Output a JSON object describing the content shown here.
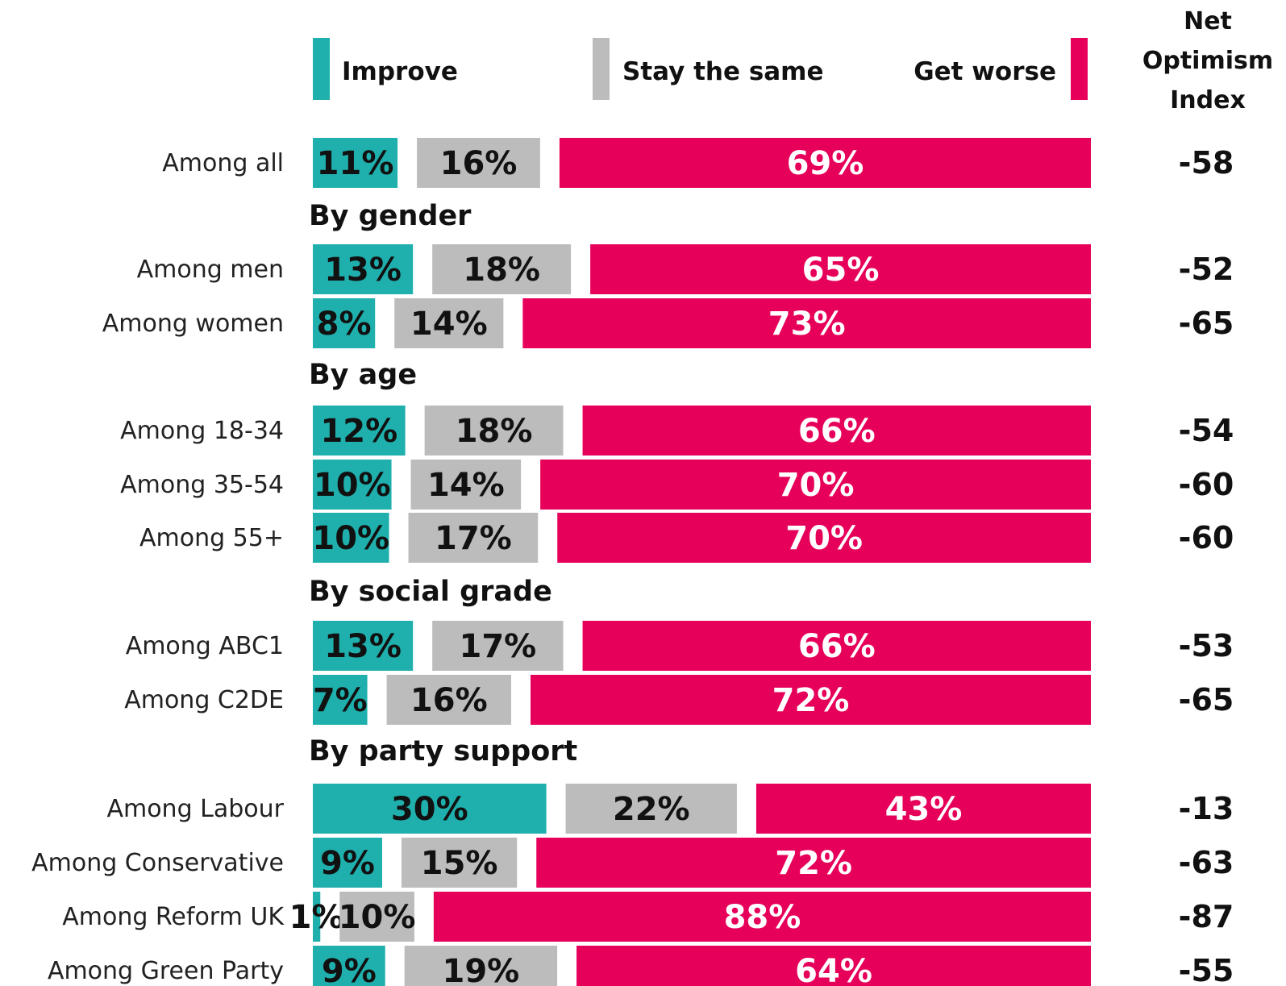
{
  "colors": {
    "improve": "#1fb0ad",
    "same": "#bcbcbc",
    "worse": "#e6005a",
    "dark_text": "#111111",
    "light_text": "#ffffff"
  },
  "legend": {
    "improve": "Improve",
    "same": "Stay the same",
    "worse": "Get worse"
  },
  "net_header": [
    "Net",
    "Optimism",
    "Index"
  ],
  "chart_data": {
    "type": "bar",
    "orientation": "horizontal",
    "stacked": true,
    "series": [
      {
        "name": "Improve",
        "key": "improve"
      },
      {
        "name": "Stay the same",
        "key": "same"
      },
      {
        "name": "Get worse",
        "key": "worse"
      }
    ],
    "value_column_title": "Net Optimism Index",
    "rows": [
      {
        "type": "row",
        "label": "Among all",
        "improve": 11,
        "same": 16,
        "worse": 69,
        "net": "-58"
      },
      {
        "type": "section",
        "label": "By gender"
      },
      {
        "type": "row",
        "label": "Among men",
        "improve": 13,
        "same": 18,
        "worse": 65,
        "net": "-52"
      },
      {
        "type": "row",
        "label": "Among women",
        "improve": 8,
        "same": 14,
        "worse": 73,
        "net": "-65"
      },
      {
        "type": "section",
        "label": "By age"
      },
      {
        "type": "row",
        "label": "Among 18-34",
        "improve": 12,
        "same": 18,
        "worse": 66,
        "net": "-54"
      },
      {
        "type": "row",
        "label": "Among 35-54",
        "improve": 10,
        "same": 14,
        "worse": 70,
        "net": "-60"
      },
      {
        "type": "row",
        "label": "Among 55+",
        "improve": 10,
        "same": 17,
        "worse": 70,
        "net": "-60"
      },
      {
        "type": "section",
        "label": "By social grade"
      },
      {
        "type": "row",
        "label": "Among ABC1",
        "improve": 13,
        "same": 17,
        "worse": 66,
        "net": "-53"
      },
      {
        "type": "row",
        "label": "Among C2DE",
        "improve": 7,
        "same": 16,
        "worse": 72,
        "net": "-65"
      },
      {
        "type": "section",
        "label": "By party support"
      },
      {
        "type": "row",
        "label": "Among Labour",
        "improve": 30,
        "same": 22,
        "worse": 43,
        "net": "-13"
      },
      {
        "type": "row",
        "label": "Among Conservative",
        "improve": 9,
        "same": 15,
        "worse": 72,
        "net": "-63"
      },
      {
        "type": "row",
        "label": "Among Reform UK",
        "improve": 1,
        "same": 10,
        "worse": 88,
        "net": "-87"
      },
      {
        "type": "row",
        "label": "Among Green Party",
        "improve": 9,
        "same": 19,
        "worse": 64,
        "net": "-55"
      }
    ]
  }
}
